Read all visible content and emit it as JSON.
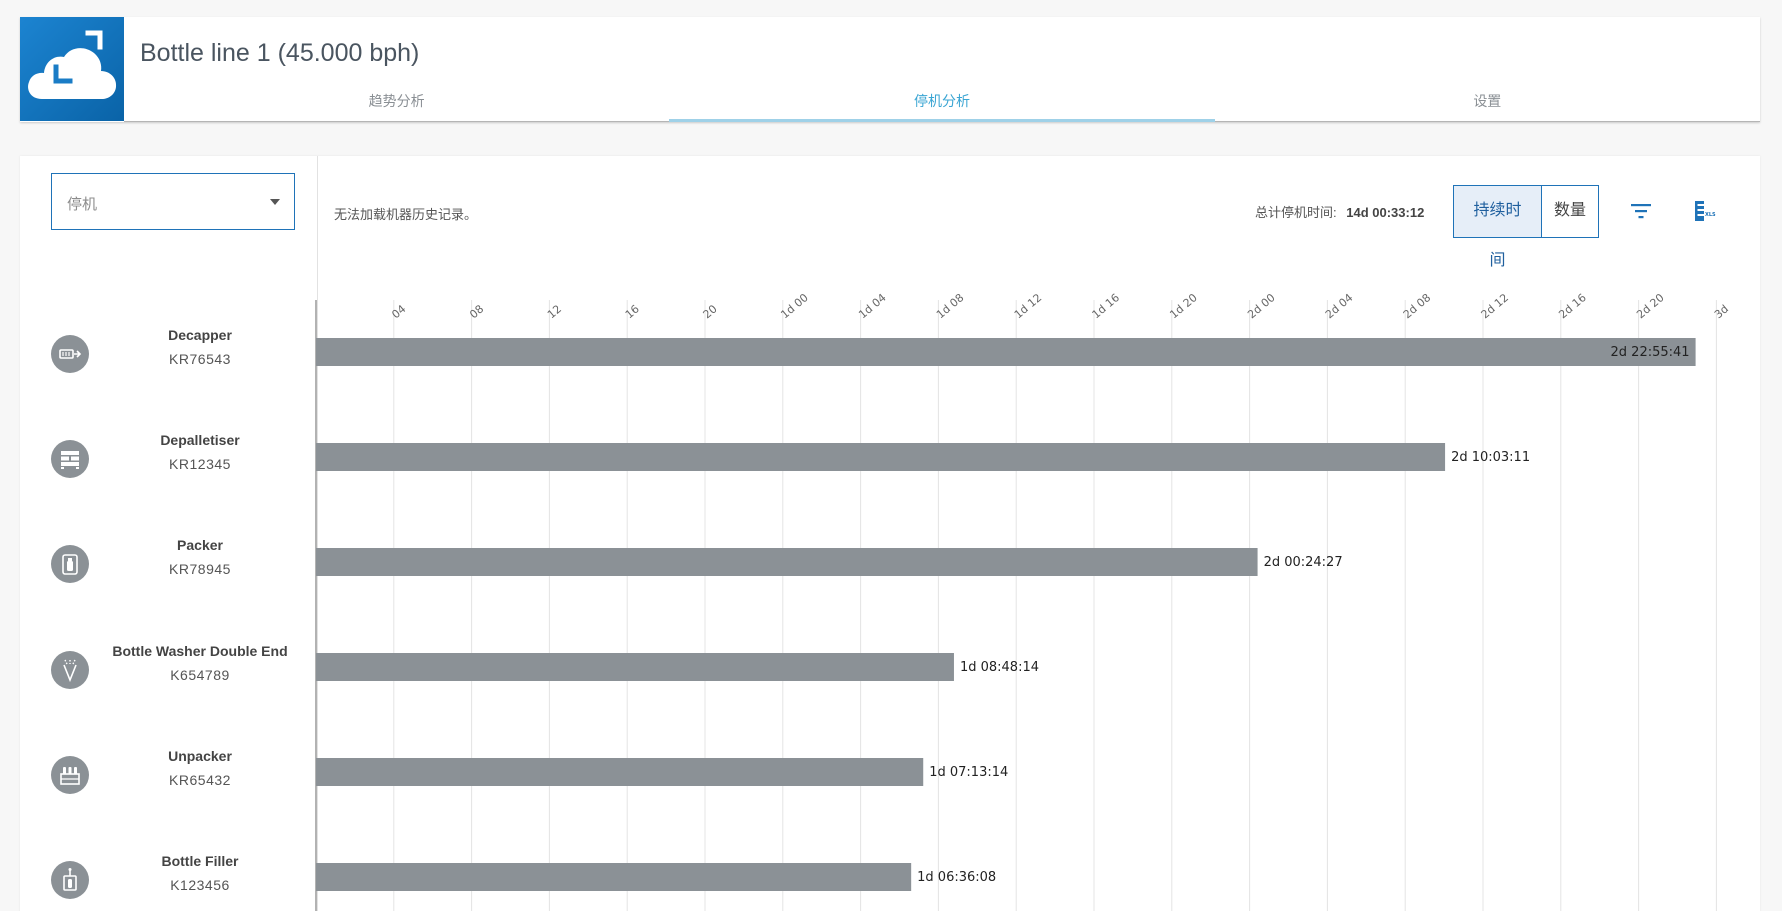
{
  "header": {
    "title": "Bottle line 1 (45.000 bph)",
    "tabs": [
      {
        "label": "趋势分析",
        "active": false
      },
      {
        "label": "停机分析",
        "active": true
      },
      {
        "label": "设置",
        "active": false
      }
    ]
  },
  "filter": {
    "dropdown_value": "停机"
  },
  "status": {
    "message": "无法加载机器历史记录。",
    "total_label": "总计停机时间:",
    "total_value": "14d 00:33:12"
  },
  "toggle": {
    "duration_label": "持续时间",
    "count_label": "数量",
    "active": "duration"
  },
  "icons": {
    "filter": "filter-icon",
    "export": "export-xls-icon"
  },
  "colors": {
    "bar": "#8b9196",
    "accent": "#1f73b8",
    "active_tab": "#3aa5d3"
  },
  "machines": [
    {
      "name": "Decapper",
      "id": "KR76543",
      "icon": "decapper-icon"
    },
    {
      "name": "Depalletiser",
      "id": "KR12345",
      "icon": "depalletiser-icon"
    },
    {
      "name": "Packer",
      "id": "KR78945",
      "icon": "packer-icon"
    },
    {
      "name": "Bottle Washer Double End",
      "id": "K654789",
      "icon": "washer-icon"
    },
    {
      "name": "Unpacker",
      "id": "KR65432",
      "icon": "unpacker-icon"
    },
    {
      "name": "Bottle Filler",
      "id": "K123456",
      "icon": "filler-icon"
    }
  ],
  "chart_data": {
    "type": "bar",
    "orientation": "horizontal",
    "categories": [
      "Decapper",
      "Depalletiser",
      "Packer",
      "Bottle Washer Double End",
      "Unpacker",
      "Bottle Filler"
    ],
    "values_hours": [
      70.93,
      58.05,
      48.41,
      32.8,
      31.22,
      30.6
    ],
    "value_labels": [
      "2d 22:55:41",
      "2d 10:03:11",
      "2d 00:24:27",
      "1d 08:48:14",
      "1d 07:13:14",
      "1d 06:36:08"
    ],
    "x_ticks_hours": [
      4,
      8,
      12,
      16,
      20,
      24,
      28,
      32,
      36,
      40,
      44,
      48,
      52,
      56,
      60,
      64,
      68,
      72
    ],
    "x_tick_labels": [
      "04",
      "08",
      "12",
      "16",
      "20",
      "1d 00",
      "1d 04",
      "1d 08",
      "1d 12",
      "1d 16",
      "1d 20",
      "2d 00",
      "2d 04",
      "2d 08",
      "2d 12",
      "2d 16",
      "2d 20",
      "3d"
    ],
    "xlim_hours": [
      0,
      72
    ],
    "grid": true
  }
}
